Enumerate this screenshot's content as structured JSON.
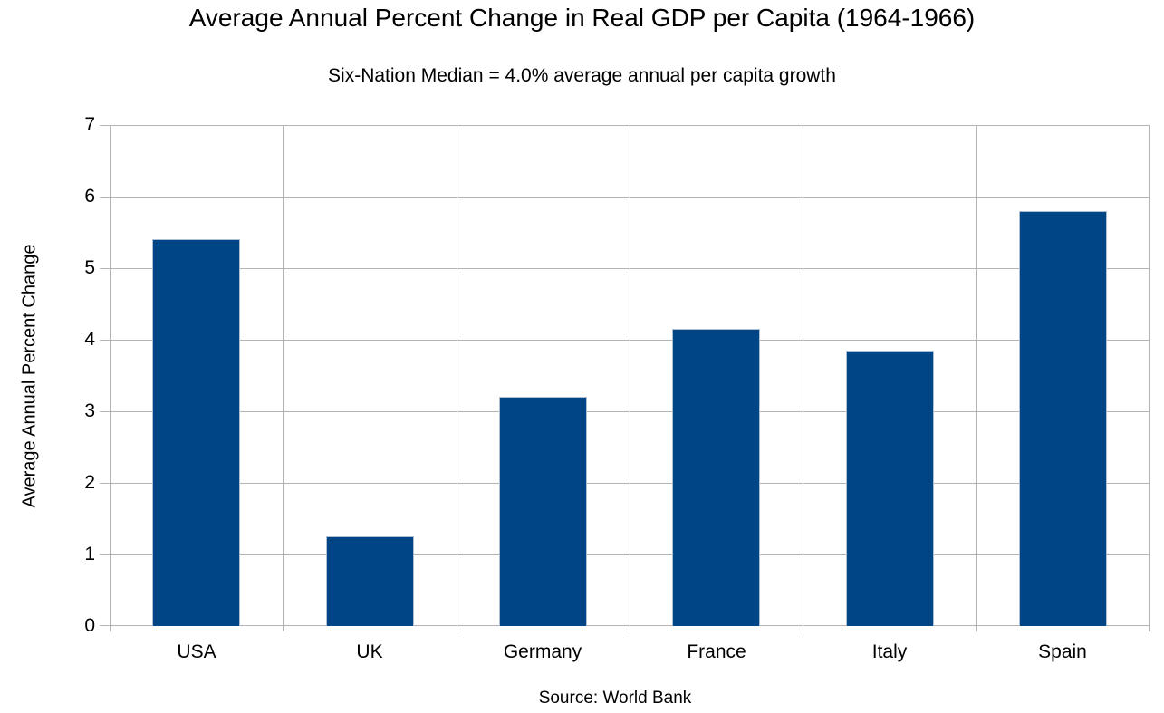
{
  "chart_data": {
    "type": "bar",
    "title": "Average Annual Percent Change in Real GDP per Capita (1964-1966)",
    "subtitle": "Six-Nation Median = 4.0% average annual per capita growth",
    "categories": [
      "USA",
      "UK",
      "Germany",
      "France",
      "Italy",
      "Spain"
    ],
    "values": [
      5.4,
      1.25,
      3.2,
      4.15,
      3.85,
      5.8
    ],
    "xlabel": "",
    "ylabel": "Average Annual Percent Change",
    "source_note": "Source: World Bank",
    "ylim": [
      0,
      7
    ],
    "yticks": [
      0,
      1,
      2,
      3,
      4,
      5,
      6,
      7
    ],
    "grid": true,
    "legend": "none",
    "data_labels": false,
    "bar_color": "#004586",
    "bar_border_color": "#aebfd2",
    "grid_color": "#b3b3b3",
    "axis_color": "#b3b3b3",
    "text_color": "#000000",
    "background_color": "#ffffff"
  }
}
